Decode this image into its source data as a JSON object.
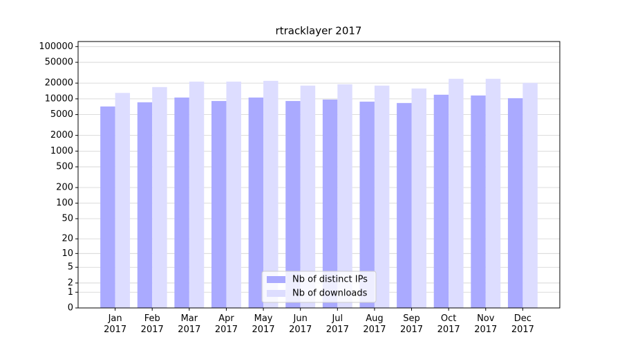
{
  "chart_data": {
    "type": "bar",
    "title": "rtracklayer 2017",
    "categories": [
      "Jan\n2017",
      "Feb\n2017",
      "Mar\n2017",
      "Apr\n2017",
      "May\n2017",
      "Jun\n2017",
      "Jul\n2017",
      "Aug\n2017",
      "Sep\n2017",
      "Oct\n2017",
      "Nov\n2017",
      "Dec\n2017"
    ],
    "series": [
      {
        "name": "Nb of distinct IPs",
        "color": "#aaaaff",
        "values": [
          7150,
          8600,
          10600,
          9100,
          10600,
          9100,
          9700,
          8850,
          8330,
          12000,
          11600,
          10300
        ]
      },
      {
        "name": "Nb of downloads",
        "color": "#ddddff",
        "values": [
          13000,
          16800,
          21400,
          21400,
          22100,
          17900,
          19000,
          17900,
          15800,
          24200,
          24200,
          20200
        ]
      }
    ],
    "yscale": "symlog",
    "ylim": [
      0,
      125000
    ],
    "yticks": [
      0,
      1,
      2,
      5,
      10,
      20,
      50,
      100,
      200,
      500,
      1000,
      2000,
      5000,
      10000,
      20000,
      50000,
      100000
    ],
    "grid": true,
    "legend": "lower center"
  }
}
